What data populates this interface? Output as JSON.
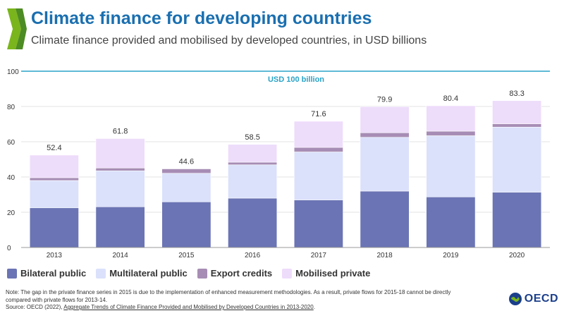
{
  "header": {
    "title": "Climate finance for developing countries",
    "subtitle": "Climate finance provided and mobilised by developed countries, in USD billions"
  },
  "chart_data": {
    "type": "bar",
    "stacked": true,
    "categories": [
      "2013",
      "2014",
      "2015",
      "2016",
      "2017",
      "2018",
      "2019",
      "2020"
    ],
    "series": [
      {
        "name": "Bilateral public",
        "color": "#6b74b4",
        "values": [
          22.5,
          23.1,
          25.9,
          28.0,
          27.0,
          32.0,
          28.7,
          31.4
        ]
      },
      {
        "name": "Multilateral public",
        "color": "#dbe1fb",
        "values": [
          15.5,
          20.4,
          16.2,
          18.9,
          27.2,
          30.5,
          34.7,
          36.9
        ]
      },
      {
        "name": "Export credits",
        "color": "#a78db5",
        "values": [
          1.6,
          1.6,
          2.5,
          1.5,
          2.6,
          2.6,
          2.6,
          1.9
        ]
      },
      {
        "name": "Mobilised private",
        "color": "#eedcfb",
        "values": [
          12.8,
          16.7,
          0.0,
          10.1,
          14.8,
          14.8,
          14.4,
          13.1
        ]
      }
    ],
    "totals": [
      52.4,
      61.8,
      44.6,
      58.5,
      71.6,
      79.9,
      80.4,
      83.3
    ],
    "total_labels": [
      "52.4",
      "61.8",
      "44.6",
      "58.5",
      "71.6",
      "79.9",
      "80.4",
      "83.3"
    ],
    "y_ticks": [
      "0",
      "20",
      "40",
      "60",
      "80",
      "100"
    ],
    "ylim": [
      0,
      100
    ],
    "target_line": {
      "value": 100,
      "label": "USD 100 billion",
      "color": "#29a3c7"
    },
    "xlabel": "",
    "ylabel": "",
    "legend_position": "bottom-left"
  },
  "legend": {
    "items": [
      {
        "label": "Bilateral public",
        "color": "#6b74b4"
      },
      {
        "label": "Multilateral public",
        "color": "#dbe1fb"
      },
      {
        "label": "Export credits",
        "color": "#a78db5"
      },
      {
        "label": "Mobilised private",
        "color": "#eedcfb"
      }
    ]
  },
  "footer": {
    "note_line1": "Note: The gap in the private finance series in 2015 is due to the implementation of enhanced measurement methodologies. As a result, private flows for 2015-18 cannot be directly",
    "note_line2": "compared with private flows for 2013-14.",
    "source_prefix": "Source: OECD (2022), ",
    "source_link": "Aggregate Trends of Climate Finance Provided and Mobilised by Developed Countries in 2013-2020",
    "source_suffix": ".",
    "logo_text": "OECD"
  }
}
